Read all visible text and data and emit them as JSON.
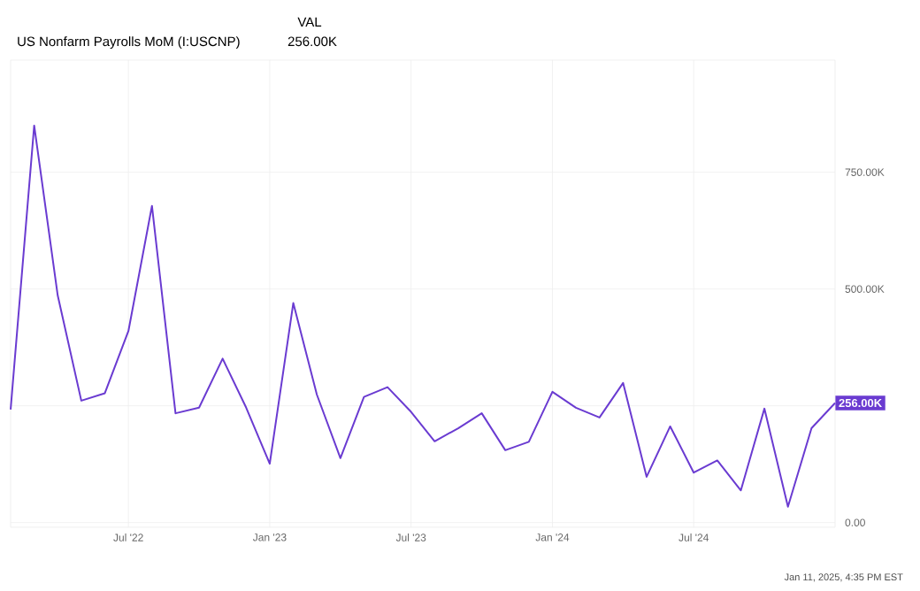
{
  "chart_data": {
    "type": "line",
    "title": "US Nonfarm Payrolls MoM (I:USCNP)",
    "annotations": [
      "VAL",
      "256.00K",
      "Jan 11, 2025, 4:35 PM EST"
    ],
    "x": [
      "2022-02",
      "2022-03",
      "2022-04",
      "2022-05",
      "2022-06",
      "2022-07",
      "2022-08",
      "2022-09",
      "2022-10",
      "2022-11",
      "2022-12",
      "2023-01",
      "2023-02",
      "2023-03",
      "2023-04",
      "2023-05",
      "2023-06",
      "2023-07",
      "2023-08",
      "2023-09",
      "2023-10",
      "2023-11",
      "2023-12",
      "2024-01",
      "2024-02",
      "2024-03",
      "2024-04",
      "2024-05",
      "2024-06",
      "2024-07",
      "2024-08",
      "2024-09",
      "2024-10",
      "2024-11",
      "2024-12",
      "2025-01"
    ],
    "series": [
      {
        "color": "#6a3bd1",
        "values": [
          242000,
          850000,
          486000,
          261000,
          277000,
          410000,
          678000,
          234000,
          246000,
          351000,
          246000,
          126000,
          470000,
          274000,
          138000,
          269000,
          290000,
          237000,
          174000,
          202000,
          234000,
          155000,
          173000,
          280000,
          246000,
          225000,
          299000,
          98000,
          206000,
          107000,
          133000,
          69000,
          244000,
          34000,
          202000,
          256000
        ],
        "value_labels": [
          null,
          null,
          null,
          null,
          null,
          null,
          null,
          null,
          null,
          null,
          null,
          null,
          null,
          null,
          null,
          null,
          null,
          null,
          null,
          null,
          null,
          null,
          null,
          null,
          null,
          null,
          null,
          null,
          null,
          null,
          null,
          null,
          null,
          null,
          null,
          "256.00K"
        ]
      }
    ],
    "xlim": [
      "2022-02",
      "2025-01"
    ],
    "xticks": [
      {
        "value": "2022-07",
        "label": "Jul '22"
      },
      {
        "value": "2023-01",
        "label": "Jan '23"
      },
      {
        "value": "2023-07",
        "label": "Jul '23"
      },
      {
        "value": "2024-01",
        "label": "Jan '24"
      },
      {
        "value": "2024-07",
        "label": "Jul '24"
      }
    ],
    "ylim": [
      -10000,
      990000
    ],
    "yticks": [
      {
        "value": 0,
        "label": "0.00"
      },
      {
        "value": 250000,
        "label": null
      },
      {
        "value": 500000,
        "label": "500.00K"
      },
      {
        "value": 750000,
        "label": "750.00K"
      }
    ],
    "grid": true,
    "marker": "none",
    "line_style": "solid"
  }
}
